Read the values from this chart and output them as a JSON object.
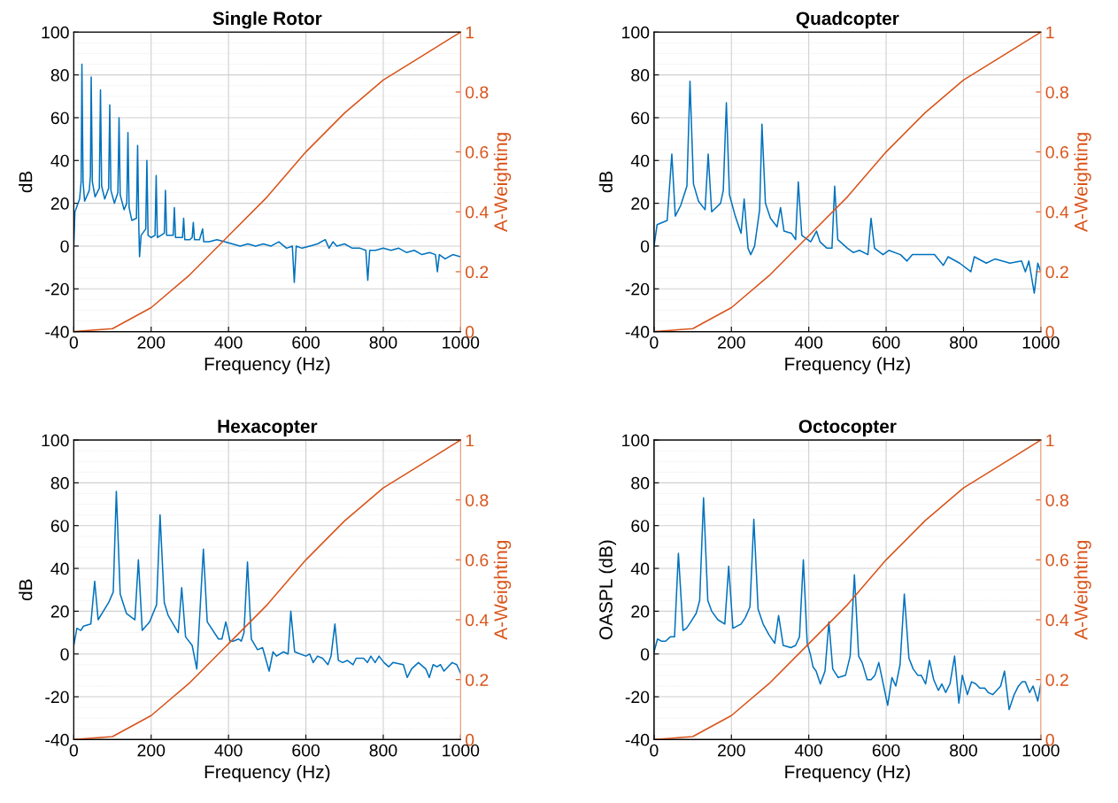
{
  "chart_data": [
    {
      "type": "line",
      "title": "Single Rotor",
      "xlabel": "Frequency (Hz)",
      "ylabel": "dB",
      "y2label": "A-Weighting",
      "xlim": [
        0,
        1000
      ],
      "xticks": [
        0,
        200,
        400,
        600,
        800,
        1000
      ],
      "ylim": [
        -40,
        100
      ],
      "yticks": [
        -40,
        -20,
        0,
        20,
        40,
        60,
        80,
        100
      ],
      "y2lim": [
        0,
        1
      ],
      "y2ticks": [
        0,
        0.2,
        0.4,
        0.6,
        0.8,
        1
      ],
      "grid": true,
      "series": [
        {
          "color": "#0072bd",
          "x": [
            0,
            3,
            15,
            19,
            21,
            24,
            28,
            40,
            43,
            45,
            48,
            55,
            66,
            69,
            72,
            80,
            90,
            93,
            96,
            105,
            114,
            117,
            120,
            130,
            137,
            140,
            143,
            150,
            162,
            165,
            168,
            170,
            174,
            186,
            189,
            192,
            200,
            210,
            213,
            216,
            225,
            234,
            237,
            240,
            250,
            257,
            260,
            263,
            272,
            281,
            284,
            287,
            300,
            306,
            309,
            312,
            325,
            333,
            336,
            350,
            370,
            390,
            410,
            430,
            450,
            470,
            490,
            510,
            530,
            550,
            565,
            570,
            575,
            590,
            610,
            630,
            650,
            660,
            670,
            680,
            700,
            720,
            740,
            755,
            760,
            765,
            780,
            800,
            820,
            840,
            860,
            880,
            900,
            920,
            935,
            940,
            945,
            960,
            980,
            1000
          ],
          "values": [
            0,
            16,
            22,
            30,
            85,
            30,
            21,
            26,
            33,
            79,
            30,
            23,
            27,
            73,
            28,
            22,
            27,
            66,
            26,
            20,
            25,
            60,
            24,
            17,
            20,
            53,
            18,
            12,
            13,
            47,
            10,
            -5,
            5,
            8,
            40,
            5,
            4,
            5,
            33,
            4,
            5,
            6,
            26,
            5,
            5,
            5,
            18,
            4,
            4,
            4,
            13,
            3,
            3,
            4,
            11,
            3,
            3,
            8,
            2,
            2,
            3,
            2,
            1,
            0,
            1,
            0,
            1,
            0,
            2,
            -1,
            0,
            -17,
            0,
            -1,
            0,
            1,
            3,
            -1,
            2,
            0,
            1,
            -1,
            -1,
            -2,
            -16,
            -2,
            -2,
            -1,
            -2,
            -1,
            -3,
            -2,
            -4,
            -3,
            -4,
            -12,
            -4,
            -6,
            -4,
            -5
          ]
        },
        {
          "color": "#d95319",
          "axis": "y2",
          "x": [
            0,
            100,
            200,
            300,
            400,
            500,
            600,
            700,
            800,
            900,
            1000
          ],
          "values": [
            0,
            0.01,
            0.08,
            0.19,
            0.32,
            0.45,
            0.6,
            0.73,
            0.84,
            0.92,
            1
          ]
        }
      ]
    },
    {
      "type": "line",
      "title": "Quadcopter",
      "xlabel": "Frequency (Hz)",
      "ylabel": "dB",
      "y2label": "A-Weighting",
      "xlim": [
        0,
        1000
      ],
      "xticks": [
        0,
        200,
        400,
        600,
        800,
        1000
      ],
      "ylim": [
        -40,
        100
      ],
      "yticks": [
        -40,
        -20,
        0,
        20,
        40,
        60,
        80,
        100
      ],
      "y2lim": [
        0,
        1
      ],
      "y2ticks": [
        0,
        0.2,
        0.4,
        0.6,
        0.8,
        1
      ],
      "grid": true,
      "series": [
        {
          "color": "#0072bd",
          "x": [
            0,
            8,
            34,
            46,
            55,
            69,
            85,
            93,
            102,
            115,
            132,
            140,
            149,
            172,
            179,
            187,
            195,
            210,
            225,
            233,
            243,
            250,
            260,
            273,
            279,
            288,
            301,
            318,
            327,
            336,
            355,
            366,
            373,
            382,
            405,
            420,
            429,
            447,
            460,
            467,
            475,
            500,
            515,
            531,
            553,
            561,
            570,
            592,
            607,
            637,
            654,
            668,
            687,
            725,
            748,
            760,
            790,
            819,
            828,
            859,
            882,
            920,
            950,
            960,
            969,
            983,
            992,
            1000
          ],
          "values": [
            0,
            10,
            12,
            43,
            14,
            19,
            28,
            77,
            29,
            21,
            17,
            43,
            16,
            20,
            26,
            67,
            24,
            14,
            6,
            22,
            -1,
            -4,
            0,
            17,
            57,
            20,
            13,
            9,
            18,
            7,
            6,
            3,
            30,
            5,
            2,
            7,
            2,
            -1,
            -1,
            28,
            3,
            -1,
            -3,
            -2,
            -4,
            13,
            -1,
            -4,
            -2,
            -4,
            -7,
            -4,
            -4,
            -4,
            -9,
            -5,
            -8,
            -12,
            -5,
            -8,
            -6,
            -8,
            -7,
            -12,
            -7,
            -22,
            -8,
            -12
          ]
        },
        {
          "color": "#d95319",
          "axis": "y2",
          "x": [
            0,
            100,
            200,
            300,
            400,
            500,
            600,
            700,
            800,
            900,
            1000
          ],
          "values": [
            0,
            0.01,
            0.08,
            0.19,
            0.32,
            0.45,
            0.6,
            0.73,
            0.84,
            0.92,
            1
          ]
        }
      ]
    },
    {
      "type": "line",
      "title": "Hexacopter",
      "xlabel": "Frequency (Hz)",
      "ylabel": "dB",
      "y2label": "A-Weighting",
      "xlim": [
        0,
        1000
      ],
      "xticks": [
        0,
        200,
        400,
        600,
        800,
        1000
      ],
      "ylim": [
        -40,
        100
      ],
      "yticks": [
        -40,
        -20,
        0,
        20,
        40,
        60,
        80,
        100
      ],
      "y2lim": [
        0,
        1
      ],
      "y2ticks": [
        0,
        0.2,
        0.4,
        0.6,
        0.8,
        1
      ],
      "grid": true,
      "series": [
        {
          "color": "#0072bd",
          "x": [
            0,
            8,
            18,
            25,
            44,
            54,
            63,
            90,
            102,
            110,
            120,
            136,
            158,
            167,
            177,
            196,
            214,
            223,
            234,
            244,
            270,
            279,
            289,
            306,
            318,
            335,
            345,
            374,
            383,
            393,
            404,
            412,
            426,
            433,
            440,
            449,
            459,
            475,
            488,
            505,
            515,
            524,
            542,
            554,
            561,
            571,
            600,
            610,
            619,
            630,
            643,
            657,
            665,
            675,
            684,
            695,
            707,
            722,
            730,
            749,
            759,
            768,
            779,
            789,
            802,
            814,
            825,
            852,
            862,
            873,
            891,
            910,
            919,
            929,
            939,
            948,
            957,
            978,
            990,
            1000
          ],
          "values": [
            4,
            12,
            11,
            13,
            14,
            34,
            16,
            24,
            29,
            76,
            28,
            19,
            16,
            44,
            11,
            15,
            23,
            65,
            24,
            18,
            10,
            31,
            8,
            4,
            -7,
            49,
            15,
            7,
            7,
            15,
            6,
            6,
            7,
            6,
            10,
            43,
            7,
            2,
            3,
            -8,
            1,
            -1,
            1,
            0,
            20,
            1,
            -1,
            0,
            -4,
            -1,
            -2,
            -5,
            -1,
            14,
            -3,
            -4,
            -3,
            -5,
            -2,
            -2,
            -4,
            -1,
            -4,
            -1,
            -4,
            -6,
            -4,
            -5,
            -11,
            -7,
            -4,
            -7,
            -11,
            -5,
            -6,
            -5,
            -8,
            -4,
            -5,
            -9
          ]
        },
        {
          "color": "#d95319",
          "axis": "y2",
          "x": [
            0,
            100,
            200,
            300,
            400,
            500,
            600,
            700,
            800,
            900,
            1000
          ],
          "values": [
            0,
            0.01,
            0.08,
            0.19,
            0.32,
            0.45,
            0.6,
            0.73,
            0.84,
            0.92,
            1
          ]
        }
      ]
    },
    {
      "type": "line",
      "title": "Octocopter",
      "xlabel": "Frequency (Hz)",
      "ylabel": "OASPL (dB)",
      "y2label": "A-Weighting",
      "xlim": [
        0,
        1000
      ],
      "xticks": [
        0,
        200,
        400,
        600,
        800,
        1000
      ],
      "ylim": [
        -40,
        100
      ],
      "yticks": [
        -40,
        -20,
        0,
        20,
        40,
        60,
        80,
        100
      ],
      "y2lim": [
        0,
        1
      ],
      "y2ticks": [
        0,
        0.2,
        0.4,
        0.6,
        0.8,
        1
      ],
      "grid": true,
      "series": [
        {
          "color": "#0072bd",
          "x": [
            0,
            9,
            19,
            30,
            42,
            53,
            63,
            75,
            84,
            95,
            109,
            118,
            128,
            139,
            149,
            165,
            183,
            193,
            204,
            225,
            236,
            248,
            258,
            269,
            282,
            297,
            312,
            322,
            334,
            354,
            366,
            376,
            386,
            396,
            404,
            411,
            419,
            430,
            442,
            452,
            462,
            476,
            495,
            507,
            518,
            529,
            538,
            551,
            561,
            571,
            581,
            604,
            615,
            625,
            636,
            647,
            659,
            670,
            682,
            691,
            702,
            712,
            723,
            735,
            744,
            754,
            765,
            777,
            788,
            797,
            810,
            821,
            832,
            842,
            855,
            864,
            876,
            886,
            896,
            906,
            918,
            931,
            942,
            952,
            960,
            971,
            980,
            992,
            1000
          ],
          "values": [
            1,
            7,
            6,
            6,
            8,
            8,
            47,
            11,
            12,
            15,
            19,
            25,
            73,
            25,
            20,
            16,
            14,
            41,
            12,
            14,
            17,
            22,
            63,
            21,
            14,
            9,
            5,
            18,
            4,
            3,
            4,
            8,
            44,
            5,
            0,
            -6,
            -8,
            -14,
            -8,
            15,
            -7,
            -11,
            -10,
            -1,
            37,
            -1,
            -4,
            -12,
            -12,
            -10,
            -4,
            -24,
            -11,
            -15,
            -5,
            28,
            -2,
            -7,
            -10,
            -10,
            -14,
            -3,
            -12,
            -17,
            -14,
            -18,
            -14,
            -1,
            -23,
            -10,
            -19,
            -13,
            -14,
            -16,
            -16,
            -18,
            -19,
            -17,
            -15,
            -8,
            -26,
            -19,
            -15,
            -13,
            -13,
            -18,
            -15,
            -22,
            -14
          ]
        },
        {
          "color": "#d95319",
          "axis": "y2",
          "x": [
            0,
            100,
            200,
            300,
            400,
            500,
            600,
            700,
            800,
            900,
            1000
          ],
          "values": [
            0,
            0.01,
            0.08,
            0.19,
            0.32,
            0.45,
            0.6,
            0.73,
            0.84,
            0.92,
            1
          ]
        }
      ]
    }
  ]
}
